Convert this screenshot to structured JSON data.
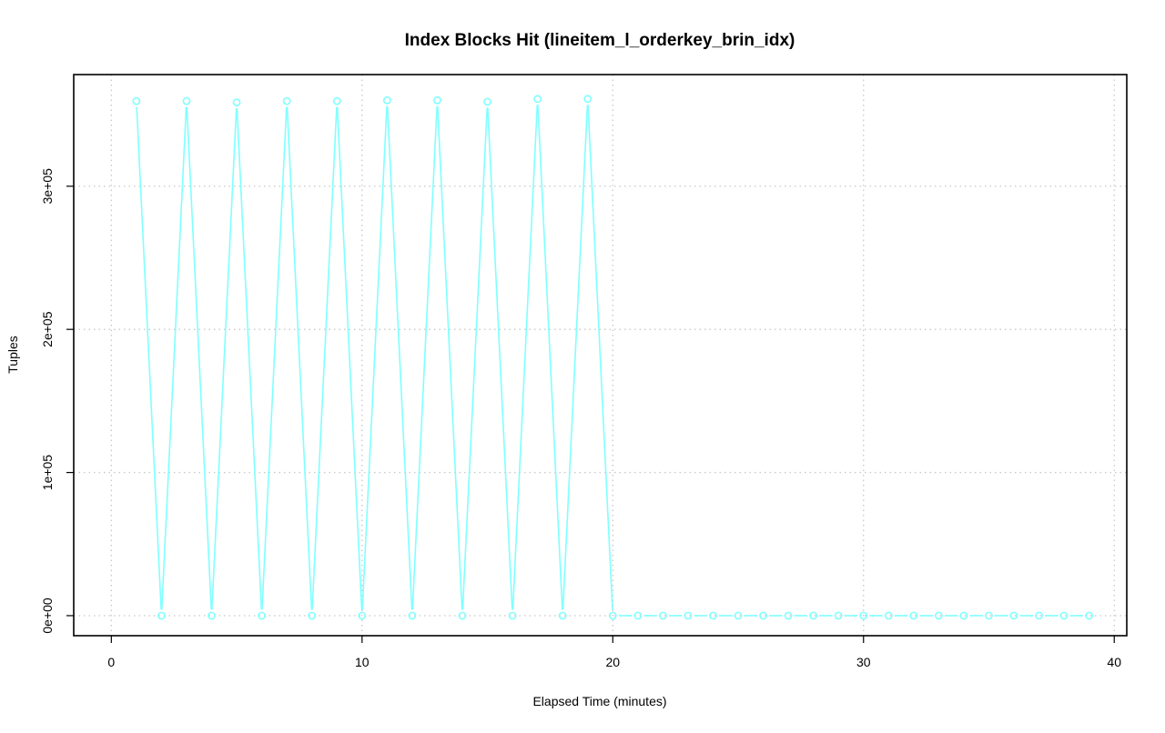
{
  "chart_data": {
    "type": "line",
    "title": "Index Blocks Hit (lineitem_l_orderkey_brin_idx)",
    "xlabel": "Elapsed Time (minutes)",
    "ylabel": "Tuples",
    "xlim": [
      -1.5,
      40.5
    ],
    "ylim": [
      -14000,
      378000
    ],
    "x_ticks": [
      0,
      10,
      20,
      30,
      40
    ],
    "x_tick_labels": [
      "0",
      "10",
      "20",
      "30",
      "40"
    ],
    "y_ticks": [
      0,
      100000,
      200000,
      300000
    ],
    "y_tick_labels": [
      "0e+00",
      "1e+05",
      "2e+05",
      "3e+05"
    ],
    "grid": true,
    "series_color": "#80ffff",
    "x": [
      1,
      2,
      3,
      4,
      5,
      6,
      7,
      8,
      9,
      10,
      11,
      12,
      13,
      14,
      15,
      16,
      17,
      18,
      19,
      20,
      21,
      22,
      23,
      24,
      25,
      26,
      27,
      28,
      29,
      30,
      31,
      32,
      33,
      34,
      35,
      36,
      37,
      38,
      39
    ],
    "values": [
      359500,
      0,
      359500,
      0,
      358500,
      0,
      359500,
      0,
      359500,
      0,
      360000,
      0,
      360000,
      0,
      359000,
      0,
      361000,
      0,
      361000,
      0,
      0,
      0,
      0,
      0,
      0,
      0,
      0,
      0,
      0,
      0,
      0,
      0,
      0,
      0,
      0,
      0,
      0,
      0,
      0
    ]
  }
}
